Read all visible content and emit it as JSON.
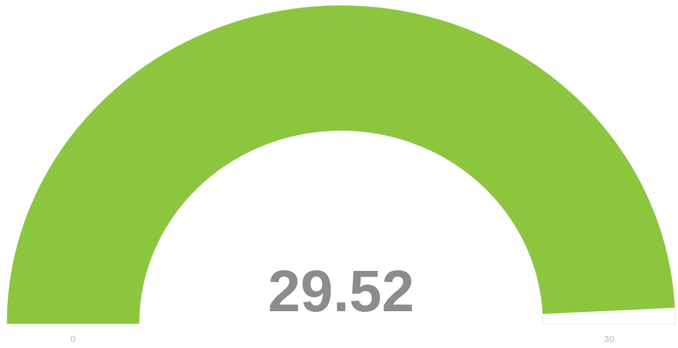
{
  "chart_data": {
    "type": "gauge",
    "value": 29.52,
    "ylim": [
      0,
      30
    ],
    "yticks": [
      0,
      30
    ],
    "color": "#8cc63f",
    "track_color": "#ffffff"
  }
}
